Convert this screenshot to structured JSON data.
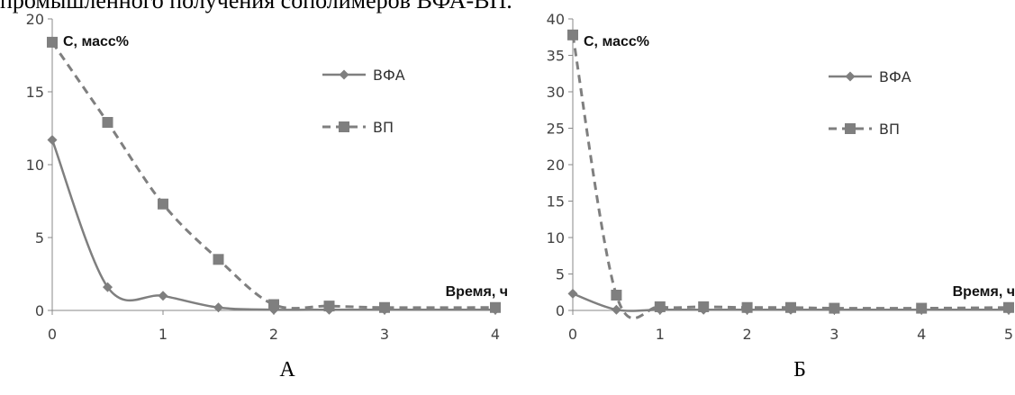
{
  "caption_fragment": "промышленного получения сополимеров ВФА-ВП.",
  "chart_data": [
    {
      "type": "line",
      "panel_label": "А",
      "ylabel": "С, масс%",
      "xlabel": "Время, ч",
      "xlim": [
        0,
        4
      ],
      "ylim": [
        0,
        20
      ],
      "x_ticks": [
        "0",
        "1",
        "2",
        "3",
        "4"
      ],
      "y_ticks": [
        "0",
        "5",
        "10",
        "15",
        "20"
      ],
      "legend_position": "top-right",
      "series": [
        {
          "name": "ВФА",
          "style": "solid",
          "marker": "diamond",
          "color": "#7f7f7f",
          "x": [
            0,
            0.5,
            1,
            1.5,
            2,
            2.5,
            3,
            4
          ],
          "y": [
            11.7,
            1.6,
            1.0,
            0.2,
            0.05,
            0.05,
            0.05,
            0.05
          ]
        },
        {
          "name": "ВП",
          "style": "dashed",
          "marker": "square",
          "color": "#7f7f7f",
          "x": [
            0,
            0.5,
            1,
            1.5,
            2,
            2.5,
            3,
            4
          ],
          "y": [
            18.4,
            12.9,
            7.3,
            3.5,
            0.4,
            0.3,
            0.2,
            0.2
          ]
        }
      ]
    },
    {
      "type": "line",
      "panel_label": "Б",
      "ylabel": "С, масс%",
      "xlabel": "Время, ч",
      "xlim": [
        0,
        5
      ],
      "ylim": [
        0,
        40
      ],
      "x_ticks": [
        "0",
        "1",
        "2",
        "3",
        "4",
        "5"
      ],
      "y_ticks": [
        "0",
        "5",
        "10",
        "15",
        "20",
        "25",
        "30",
        "35",
        "40"
      ],
      "legend_position": "top-right",
      "series": [
        {
          "name": "ВФА",
          "style": "solid",
          "marker": "diamond",
          "color": "#7f7f7f",
          "x": [
            0,
            0.5,
            1,
            1.5,
            2,
            2.5,
            3,
            4,
            5
          ],
          "y": [
            2.3,
            0.1,
            0.1,
            0.1,
            0.1,
            0.1,
            0.1,
            0.1,
            0.1
          ]
        },
        {
          "name": "ВП",
          "style": "dashed",
          "marker": "square",
          "color": "#7f7f7f",
          "x": [
            0,
            0.5,
            1,
            1.5,
            2,
            2.5,
            3,
            4,
            5
          ],
          "y": [
            37.8,
            2.1,
            0.5,
            0.5,
            0.4,
            0.4,
            0.3,
            0.3,
            0.4
          ]
        }
      ]
    }
  ]
}
